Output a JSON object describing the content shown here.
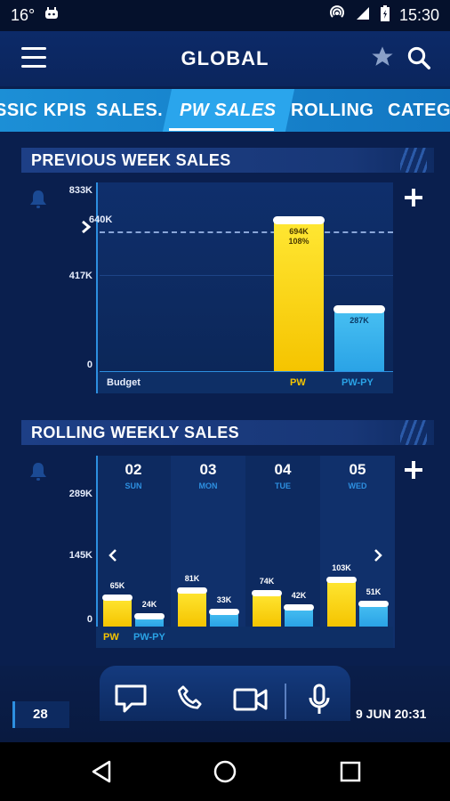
{
  "status_bar": {
    "temperature": "16°",
    "time": "15:30"
  },
  "app_bar": {
    "title": "GLOBAL"
  },
  "tabs": [
    {
      "label": "SSIC KPIS"
    },
    {
      "label": "SALES."
    },
    {
      "label": "PW SALES",
      "active": true
    },
    {
      "label": "ROLLING"
    },
    {
      "label": "CATEG"
    }
  ],
  "section1": {
    "title": "PREVIOUS WEEK SALES"
  },
  "section2": {
    "title": "ROLLING WEEKLY SALES"
  },
  "chart_data": [
    {
      "type": "bar",
      "title": "PREVIOUS WEEK SALES",
      "y_ticks": [
        "833K",
        "417K",
        "0"
      ],
      "ylim": [
        0,
        833
      ],
      "budget_line": {
        "value": 640,
        "label": "640K"
      },
      "categories": [
        "Budget",
        "PW",
        "PW-PY"
      ],
      "values": [
        null,
        694,
        287
      ],
      "value_labels": [
        "",
        "694K",
        "287K"
      ],
      "pct_labels": [
        "",
        "108%",
        ""
      ],
      "colors": {
        "PW": "#f5c400",
        "PW-PY": "#2aa3e6"
      }
    },
    {
      "type": "bar",
      "title": "ROLLING WEEKLY SALES",
      "y_ticks": [
        "289K",
        "145K",
        "0"
      ],
      "ylim": [
        0,
        289
      ],
      "days": [
        {
          "num": "02",
          "name": "SUN"
        },
        {
          "num": "03",
          "name": "MON"
        },
        {
          "num": "04",
          "name": "TUE"
        },
        {
          "num": "05",
          "name": "WED"
        }
      ],
      "series": [
        {
          "name": "PW",
          "values": [
            65,
            81,
            74,
            103
          ],
          "labels": [
            "65K",
            "81K",
            "74K",
            "103K"
          ],
          "color": "#f5c400"
        },
        {
          "name": "PW-PY",
          "values": [
            24,
            33,
            42,
            51
          ],
          "labels": [
            "24K",
            "33K",
            "42K",
            "51K"
          ],
          "color": "#2aa3e6"
        }
      ]
    }
  ],
  "bottom": {
    "count": "28",
    "datetime": "9 JUN 20:31"
  },
  "icons": {
    "menu": "hamburger-icon",
    "favorite": "star-icon",
    "search": "search-icon",
    "alert": "bell-icon",
    "add": "plus-icon",
    "chat": "chat-icon",
    "phone": "phone-icon",
    "video": "video-icon",
    "mic": "mic-icon"
  }
}
